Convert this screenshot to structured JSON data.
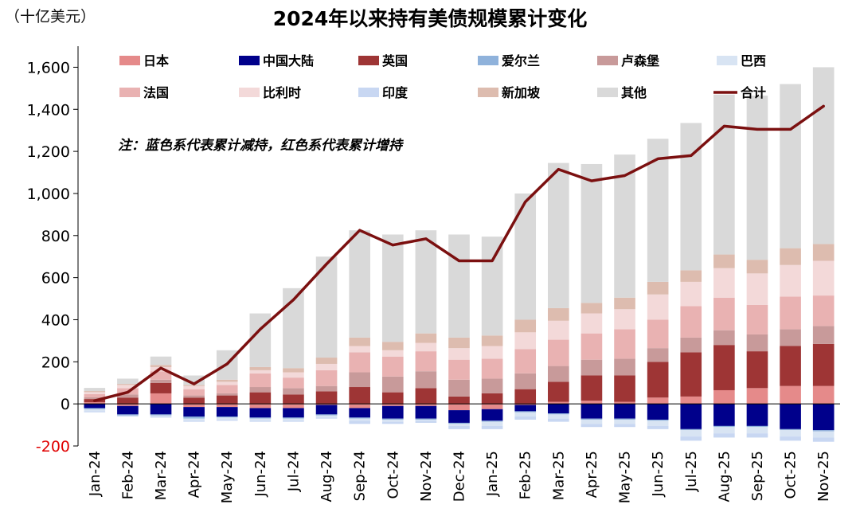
{
  "chart_data": {
    "type": "bar",
    "stacked": true,
    "title": "2024年以来持有美债规模累计变化",
    "unit": "（十亿美元）",
    "note": "注：蓝色系代表累计减持，红色系代表累计增持",
    "ylim": [
      -200,
      1700
    ],
    "yticks": [
      -200,
      0,
      200,
      400,
      600,
      800,
      1000,
      1200,
      1400,
      1600
    ],
    "ytick_labels": [
      "-200",
      "0",
      "200",
      "400",
      "600",
      "800",
      "1,000",
      "1,200",
      "1,400",
      "1,600"
    ],
    "categories": [
      "Jan-24",
      "Feb-24",
      "Mar-24",
      "Apr-24",
      "May-24",
      "Jun-24",
      "Jul-24",
      "Aug-24",
      "Sep-24",
      "Oct-24",
      "Nov-24",
      "Dec-24",
      "Jan-25",
      "Feb-25",
      "Mar-25",
      "Apr-25",
      "May-25",
      "Jun-25",
      "Jul-25",
      "Aug-25",
      "Sep-25",
      "Oct-25",
      "Nov-25"
    ],
    "series": [
      {
        "name": "日本",
        "color": "#E58A8A",
        "values": [
          8,
          -10,
          50,
          -15,
          -15,
          -20,
          -20,
          -5,
          -20,
          -10,
          -10,
          -30,
          -25,
          -5,
          10,
          15,
          10,
          30,
          35,
          65,
          75,
          85,
          85
        ]
      },
      {
        "name": "中国大陆",
        "color": "#00008B",
        "values": [
          -20,
          -40,
          -50,
          -45,
          -45,
          -45,
          -45,
          -45,
          -45,
          -60,
          -60,
          -60,
          -55,
          -30,
          -45,
          -70,
          -70,
          -75,
          -120,
          -105,
          -105,
          -120,
          -125
        ]
      },
      {
        "name": "英国",
        "color": "#9E3535",
        "values": [
          15,
          30,
          50,
          30,
          40,
          55,
          45,
          60,
          80,
          55,
          75,
          35,
          50,
          70,
          95,
          120,
          125,
          170,
          210,
          215,
          175,
          190,
          200
        ]
      },
      {
        "name": "爱尔兰",
        "color": "#8FB2DB",
        "values": [
          -5,
          -5,
          -5,
          -10,
          -5,
          -5,
          -5,
          -5,
          -5,
          -5,
          -5,
          -5,
          -5,
          -5,
          -5,
          -5,
          -5,
          -5,
          -5,
          -5,
          -5,
          -5,
          -5
        ]
      },
      {
        "name": "卢森堡",
        "color": "#C89A9A",
        "values": [
          8,
          15,
          15,
          10,
          10,
          25,
          30,
          25,
          70,
          75,
          80,
          80,
          70,
          75,
          75,
          75,
          80,
          65,
          70,
          70,
          80,
          80,
          85
        ]
      },
      {
        "name": "巴西",
        "color": "#D8E4F3",
        "values": [
          -10,
          0,
          -5,
          -10,
          -10,
          -10,
          -10,
          -10,
          -10,
          -10,
          -5,
          -10,
          -20,
          -20,
          -20,
          -20,
          -20,
          -25,
          -30,
          -30,
          -30,
          -30,
          -30
        ]
      },
      {
        "name": "法国",
        "color": "#E9B2B2",
        "values": [
          15,
          30,
          40,
          30,
          40,
          65,
          50,
          75,
          95,
          95,
          95,
          95,
          95,
          115,
          125,
          125,
          140,
          135,
          150,
          155,
          140,
          155,
          145
        ]
      },
      {
        "name": "比利时",
        "color": "#F3D9D9",
        "values": [
          10,
          15,
          20,
          15,
          15,
          15,
          25,
          30,
          30,
          30,
          40,
          55,
          60,
          80,
          90,
          95,
          95,
          120,
          115,
          140,
          150,
          150,
          165
        ]
      },
      {
        "name": "印度",
        "color": "#C8D7F2",
        "values": [
          -5,
          -5,
          -5,
          -5,
          -5,
          -5,
          -5,
          -5,
          -15,
          -10,
          -10,
          -15,
          -15,
          -15,
          -15,
          -15,
          -15,
          -15,
          -20,
          -20,
          -20,
          -20,
          -20
        ]
      },
      {
        "name": "新加坡",
        "color": "#DDBCAF",
        "values": [
          5,
          5,
          10,
          5,
          10,
          15,
          20,
          30,
          40,
          40,
          45,
          50,
          50,
          60,
          60,
          50,
          55,
          60,
          55,
          65,
          65,
          80,
          80
        ]
      },
      {
        "name": "其他",
        "color": "#D9D9D9",
        "values": [
          15,
          25,
          40,
          45,
          140,
          255,
          380,
          480,
          510,
          510,
          490,
          490,
          470,
          600,
          690,
          660,
          680,
          680,
          700,
          760,
          780,
          780,
          840
        ]
      }
    ],
    "total": {
      "name": "合计",
      "color": "#7B1010",
      "values": [
        15,
        55,
        170,
        95,
        190,
        355,
        495,
        665,
        825,
        755,
        785,
        680,
        680,
        960,
        1115,
        1060,
        1085,
        1165,
        1180,
        1320,
        1305,
        1305,
        1415
      ]
    }
  }
}
